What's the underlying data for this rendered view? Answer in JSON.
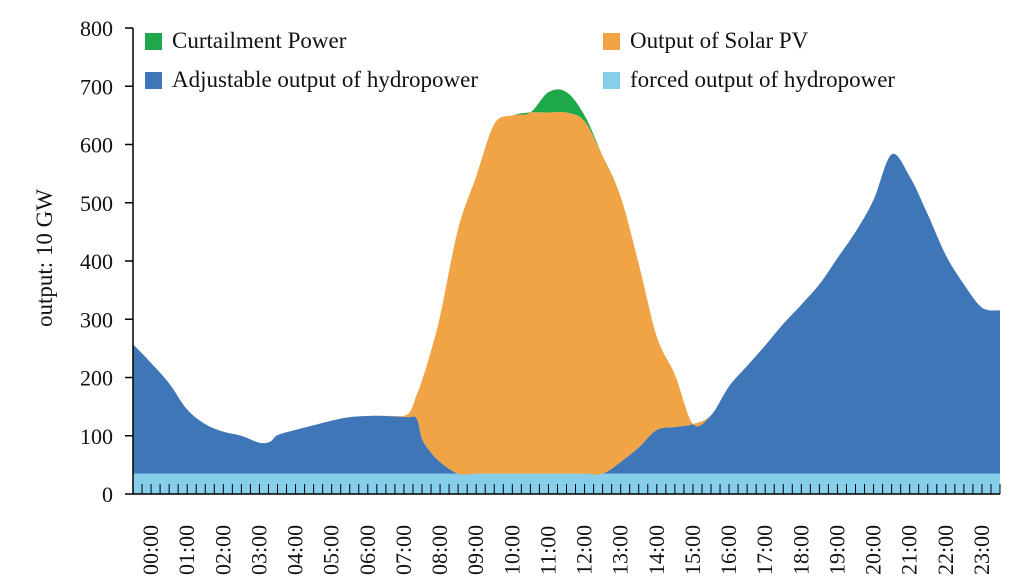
{
  "chart_data": {
    "type": "area",
    "stacked": true,
    "title": "",
    "xlabel": "",
    "ylabel": "output: 10 GW",
    "ylim": [
      0,
      800
    ],
    "yticks": [
      0,
      100,
      200,
      300,
      400,
      500,
      600,
      700,
      800
    ],
    "grid": false,
    "legend_position": "top",
    "categories": [
      "00:00",
      "01:00",
      "02:00",
      "03:00",
      "04:00",
      "05:00",
      "06:00",
      "07:00",
      "08:00",
      "09:00",
      "10:00",
      "11:00",
      "12:00",
      "13:00",
      "14:00",
      "15:00",
      "16:00",
      "17:00",
      "18:00",
      "19:00",
      "20:00",
      "21:00",
      "22:00",
      "23:00"
    ],
    "x": [
      0,
      0.5,
      1,
      1.5,
      2,
      2.5,
      3,
      3.5,
      3.8,
      4,
      4.5,
      5,
      5.5,
      6,
      6.5,
      7,
      7.6,
      7.85,
      8,
      8.2,
      8.5,
      9,
      9.5,
      10,
      10.5,
      11,
      11.5,
      12,
      12.5,
      13,
      13.5,
      14,
      14.5,
      15,
      15.5,
      16,
      16.5,
      17,
      17.5,
      18,
      18.5,
      19,
      19.5,
      20,
      20.5,
      21,
      21.5,
      22,
      22.5,
      23,
      23.5,
      24
    ],
    "series": [
      {
        "name": "forced output of hydropower",
        "color": "#87CEEB",
        "values": [
          35,
          35,
          35,
          35,
          35,
          35,
          35,
          35,
          35,
          35,
          35,
          35,
          35,
          35,
          35,
          35,
          35,
          35,
          35,
          35,
          35,
          35,
          35,
          35,
          35,
          35,
          35,
          35,
          35,
          35,
          35,
          35,
          35,
          35,
          35,
          35,
          35,
          35,
          35,
          35,
          35,
          35,
          35,
          35,
          35,
          35,
          35,
          35,
          35,
          35,
          35,
          35
        ]
      },
      {
        "name": "Adjustable output of hydropower",
        "color": "#3F76B8",
        "values": [
          222,
          190,
          155,
          110,
          85,
          72,
          65,
          53,
          55,
          66,
          75,
          83,
          91,
          97,
          99,
          99,
          97,
          95,
          60,
          40,
          20,
          0,
          0,
          0,
          0,
          0,
          0,
          0,
          0,
          0,
          20,
          45,
          75,
          80,
          85,
          100,
          150,
          185,
          220,
          257,
          290,
          325,
          370,
          415,
          470,
          548,
          510,
          445,
          375,
          325,
          285,
          280
        ]
      },
      {
        "name": "Output of Solar PV",
        "color": "#F0A445",
        "values": [
          0,
          0,
          0,
          0,
          0,
          0,
          0,
          0,
          0,
          0,
          0,
          0,
          0,
          0,
          0,
          0,
          5,
          40,
          100,
          160,
          250,
          420,
          510,
          600,
          615,
          620,
          620,
          620,
          605,
          545,
          455,
          315,
          160,
          90,
          0,
          0,
          0,
          0,
          0,
          0,
          0,
          0,
          0,
          0,
          0,
          0,
          0,
          0,
          0,
          0,
          0,
          0
        ]
      },
      {
        "name": "Curtailment Power",
        "color": "#1FA84A",
        "values": [
          0,
          0,
          0,
          0,
          0,
          0,
          0,
          0,
          0,
          0,
          0,
          0,
          0,
          0,
          0,
          0,
          0,
          0,
          0,
          0,
          0,
          0,
          0,
          0,
          0,
          0,
          35,
          35,
          10,
          0,
          0,
          0,
          0,
          0,
          0,
          0,
          0,
          0,
          0,
          0,
          0,
          0,
          0,
          0,
          0,
          0,
          0,
          0,
          0,
          0,
          0,
          0
        ]
      }
    ],
    "legend": [
      {
        "label": "Curtailment Power",
        "color": "#1FA84A"
      },
      {
        "label": "Output of Solar PV",
        "color": "#F0A445"
      },
      {
        "label": "Adjustable output of hydropower",
        "color": "#3F76B8"
      },
      {
        "label": "forced output of hydropower",
        "color": "#87CEEB"
      }
    ]
  }
}
